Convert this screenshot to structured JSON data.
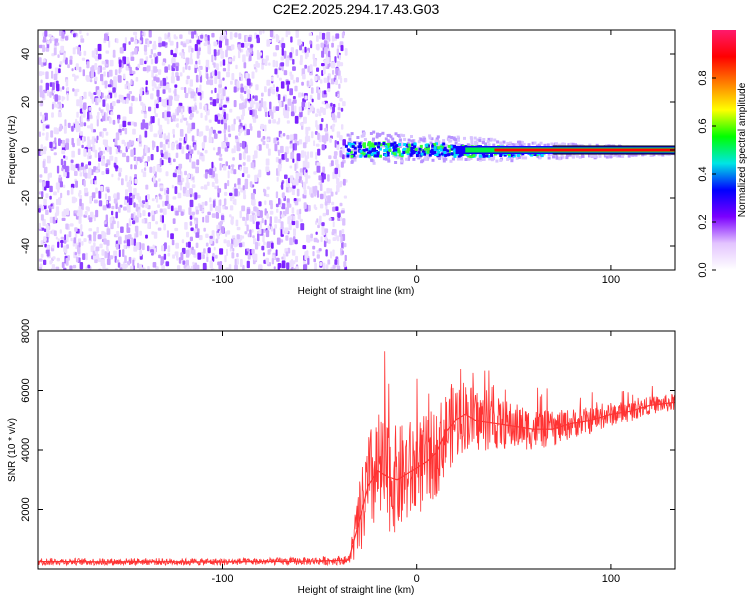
{
  "title": "C2E2.2025.294.17.43.G03",
  "chart_data": [
    {
      "type": "heatmap",
      "xlabel": "Height of straight line (km)",
      "ylabel": "Frequency (Hz)",
      "xlim": [
        -195,
        133
      ],
      "ylim": [
        -50,
        50
      ],
      "xticks": [
        -100,
        0,
        100
      ],
      "xtick_labels": [
        "-100",
        "0",
        "100"
      ],
      "yticks": [
        -40,
        -20,
        0,
        20,
        40
      ],
      "ytick_labels": [
        "-40",
        "-20",
        "0",
        "20",
        "40"
      ],
      "noise_region_x": [
        -195,
        -37
      ],
      "signal_region_x": [
        -37,
        133
      ],
      "signal_frequency_hz": 0,
      "colorbar": {
        "label": "Normalized spectral amplitude",
        "range": [
          0,
          1
        ],
        "ticks": [
          0.0,
          0.2,
          0.4,
          0.6,
          0.8
        ],
        "tick_labels": [
          "0.0",
          "0.2",
          "0.4",
          "0.6",
          "0.8"
        ],
        "colors": [
          "#ffffff",
          "#e3c4ff",
          "#7b00ff",
          "#0000ff",
          "#00e5e5",
          "#00ff00",
          "#ffff00",
          "#ff7f00",
          "#ff0000",
          "#ff1a6c"
        ]
      },
      "grid": false
    },
    {
      "type": "line",
      "xlabel": "Height of straight line (km)",
      "ylabel": "SNR (10 * v/v)",
      "xlim": [
        -195,
        133
      ],
      "ylim": [
        0,
        8000
      ],
      "xticks": [
        -100,
        0,
        100
      ],
      "xtick_labels": [
        "-100",
        "0",
        "100"
      ],
      "yticks": [
        2000,
        4000,
        6000,
        8000
      ],
      "ytick_labels": [
        "2000",
        "4000",
        "6000",
        "8000"
      ],
      "line_color": "#ff3333",
      "series": [
        {
          "x": [
            -195,
            -180,
            -160,
            -140,
            -120,
            -100,
            -80,
            -60,
            -45,
            -35,
            -30,
            -25,
            -20,
            -15,
            -10,
            -5,
            0,
            5,
            10,
            15,
            20,
            25,
            30,
            40,
            50,
            60,
            70,
            80,
            90,
            100,
            110,
            120,
            133
          ],
          "values": [
            250,
            250,
            240,
            250,
            240,
            240,
            250,
            260,
            280,
            300,
            1500,
            2800,
            3300,
            3100,
            3000,
            3200,
            3400,
            3600,
            3900,
            4600,
            5000,
            5200,
            5000,
            4900,
            4800,
            4700,
            4700,
            4900,
            5000,
            5200,
            5300,
            5500,
            5600
          ],
          "spread": [
            120,
            120,
            120,
            120,
            120,
            120,
            120,
            130,
            150,
            150,
            1200,
            1800,
            2000,
            1900,
            1800,
            1800,
            1700,
            1600,
            1500,
            1400,
            1400,
            1200,
            1100,
            900,
            800,
            700,
            600,
            500,
            450,
            400,
            350,
            300,
            300
          ]
        }
      ],
      "grid": false
    }
  ]
}
